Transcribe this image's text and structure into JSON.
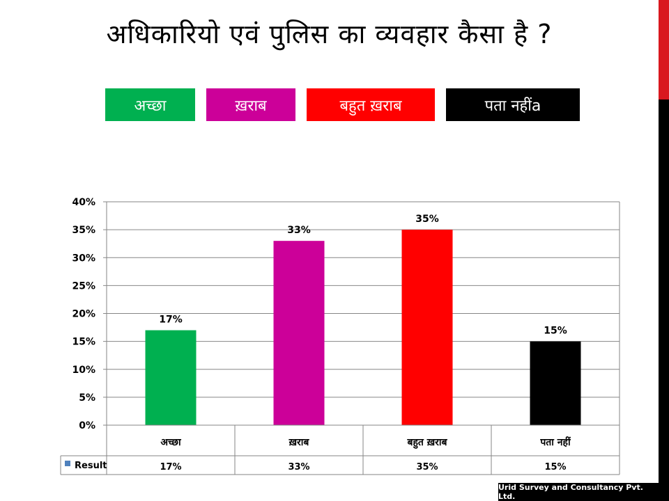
{
  "title": "अधिकारियो एवं पुलिस का व्यवहार कैसा है ?",
  "legend_boxes": [
    {
      "label": "अच्छा",
      "color": "#00b050"
    },
    {
      "label": "ख़राब",
      "color": "#cc0099"
    },
    {
      "label": "बहुत ख़राब",
      "color": "#ff0000"
    },
    {
      "label": "पता नहींa",
      "color": "#000000"
    }
  ],
  "footer": "Urid Survey and Consultancy Pvt. Ltd.",
  "chart_data": {
    "type": "bar",
    "categories": [
      "अच्छा",
      "ख़राब",
      "बहुत ख़राब",
      "पता नहीं"
    ],
    "series": [
      {
        "name": "Result",
        "values": [
          17,
          33,
          35,
          15
        ]
      }
    ],
    "data_labels": [
      "17%",
      "33%",
      "35%",
      "15%"
    ],
    "bar_colors": [
      "#00b050",
      "#cc0099",
      "#ff0000",
      "#000000"
    ],
    "ylim": [
      0,
      40
    ],
    "yticks": [
      "0%",
      "5%",
      "10%",
      "15%",
      "20%",
      "25%",
      "30%",
      "35%",
      "40%"
    ],
    "grid": true,
    "data_table": true,
    "legend_key_color": "#4f81bd"
  }
}
